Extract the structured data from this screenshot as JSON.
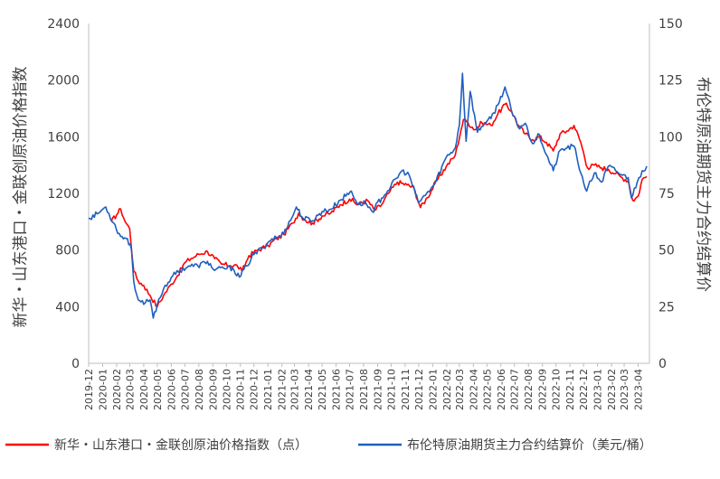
{
  "chart_data": {
    "type": "line",
    "x_start": "2019-12",
    "x_end": "2023-04",
    "x_ticks": [
      "2019-12",
      "2020-01",
      "2020-02",
      "2020-03",
      "2020-04",
      "2020-05",
      "2020-06",
      "2020-07",
      "2020-08",
      "2020-09",
      "2020-10",
      "2020-11",
      "2020-12",
      "2021-01",
      "2021-02",
      "2021-03",
      "2021-04",
      "2021-05",
      "2021-06",
      "2021-07",
      "2021-08",
      "2021-09",
      "2021-10",
      "2021-11",
      "2021-12",
      "2022-01",
      "2022-02",
      "2022-03",
      "2022-04",
      "2022-05",
      "2022-06",
      "2022-07",
      "2022-08",
      "2022-09",
      "2022-10",
      "2022-11",
      "2022-12",
      "2023-01",
      "2023-02",
      "2023-03",
      "2023-04"
    ],
    "y_left": {
      "label": "新华・山东港口・金联创原油价格指数",
      "ticks": [
        "0",
        "400",
        "800",
        "1200",
        "1600",
        "2000",
        "2400"
      ],
      "lim": [
        0,
        2400
      ]
    },
    "y_right": {
      "label": "布伦特原油期货主力合约结算价",
      "ticks": [
        "0",
        "25",
        "50",
        "75",
        "100",
        "125",
        "150"
      ],
      "lim": [
        0,
        150
      ]
    },
    "grid": false,
    "legend_position": "bottom",
    "series": [
      {
        "name": "新华・山东港口・金联创原油价格指数（点）",
        "axis": "left",
        "color": "#ff0000",
        "points": [
          [
            "2020-01-20",
            1000
          ],
          [
            "2020-02-01",
            1050
          ],
          [
            "2020-02-10",
            1090
          ],
          [
            "2020-02-20",
            1000
          ],
          [
            "2020-03-01",
            950
          ],
          [
            "2020-03-10",
            650
          ],
          [
            "2020-03-20",
            580
          ],
          [
            "2020-04-01",
            550
          ],
          [
            "2020-04-15",
            480
          ],
          [
            "2020-05-01",
            400
          ],
          [
            "2020-05-15",
            480
          ],
          [
            "2020-06-01",
            560
          ],
          [
            "2020-06-15",
            620
          ],
          [
            "2020-07-01",
            710
          ],
          [
            "2020-07-15",
            740
          ],
          [
            "2020-08-01",
            770
          ],
          [
            "2020-08-20",
            790
          ],
          [
            "2020-09-05",
            740
          ],
          [
            "2020-09-20",
            700
          ],
          [
            "2020-10-10",
            690
          ],
          [
            "2020-10-25",
            690
          ],
          [
            "2020-11-05",
            650
          ],
          [
            "2020-11-20",
            760
          ],
          [
            "2020-12-10",
            800
          ],
          [
            "2021-01-01",
            830
          ],
          [
            "2021-01-20",
            880
          ],
          [
            "2021-02-05",
            910
          ],
          [
            "2021-02-25",
            990
          ],
          [
            "2021-03-10",
            1060
          ],
          [
            "2021-03-25",
            1010
          ],
          [
            "2021-04-10",
            990
          ],
          [
            "2021-05-01",
            1040
          ],
          [
            "2021-05-20",
            1060
          ],
          [
            "2021-06-10",
            1120
          ],
          [
            "2021-07-01",
            1160
          ],
          [
            "2021-07-20",
            1120
          ],
          [
            "2021-08-10",
            1150
          ],
          [
            "2021-08-25",
            1080
          ],
          [
            "2021-09-10",
            1120
          ],
          [
            "2021-09-25",
            1200
          ],
          [
            "2021-10-15",
            1280
          ],
          [
            "2021-11-05",
            1260
          ],
          [
            "2021-11-20",
            1240
          ],
          [
            "2021-12-05",
            1100
          ],
          [
            "2021-12-20",
            1170
          ],
          [
            "2022-01-10",
            1290
          ],
          [
            "2022-01-31",
            1390
          ],
          [
            "2022-02-20",
            1470
          ],
          [
            "2022-03-05",
            1650
          ],
          [
            "2022-03-10",
            1720
          ],
          [
            "2022-03-20",
            1700
          ],
          [
            "2022-04-05",
            1650
          ],
          [
            "2022-04-20",
            1700
          ],
          [
            "2022-05-10",
            1680
          ],
          [
            "2022-05-25",
            1760
          ],
          [
            "2022-06-10",
            1830
          ],
          [
            "2022-06-25",
            1780
          ],
          [
            "2022-07-10",
            1680
          ],
          [
            "2022-07-25",
            1620
          ],
          [
            "2022-08-10",
            1580
          ],
          [
            "2022-08-25",
            1600
          ],
          [
            "2022-09-10",
            1560
          ],
          [
            "2022-09-25",
            1500
          ],
          [
            "2022-10-10",
            1620
          ],
          [
            "2022-10-25",
            1640
          ],
          [
            "2022-11-10",
            1680
          ],
          [
            "2022-11-25",
            1560
          ],
          [
            "2022-12-10",
            1380
          ],
          [
            "2022-12-25",
            1400
          ],
          [
            "2023-01-10",
            1380
          ],
          [
            "2023-01-25",
            1370
          ],
          [
            "2023-02-10",
            1340
          ],
          [
            "2023-02-25",
            1310
          ],
          [
            "2023-03-10",
            1290
          ],
          [
            "2023-03-20",
            1150
          ],
          [
            "2023-04-01",
            1180
          ],
          [
            "2023-04-10",
            1300
          ],
          [
            "2023-04-20",
            1320
          ]
        ]
      },
      {
        "name": "布伦特原油期货主力合约结算价（美元/桶）",
        "axis": "right",
        "color": "#1f5fbf",
        "points": [
          [
            "2019-12-01",
            64
          ],
          [
            "2019-12-20",
            66
          ],
          [
            "2020-01-08",
            69
          ],
          [
            "2020-01-25",
            62
          ],
          [
            "2020-02-10",
            56
          ],
          [
            "2020-02-25",
            55
          ],
          [
            "2020-03-05",
            50
          ],
          [
            "2020-03-10",
            36
          ],
          [
            "2020-03-20",
            28
          ],
          [
            "2020-04-01",
            26
          ],
          [
            "2020-04-15",
            28
          ],
          [
            "2020-04-22",
            20
          ],
          [
            "2020-05-01",
            26
          ],
          [
            "2020-05-15",
            33
          ],
          [
            "2020-06-01",
            38
          ],
          [
            "2020-06-20",
            41
          ],
          [
            "2020-07-10",
            43
          ],
          [
            "2020-07-30",
            43
          ],
          [
            "2020-08-20",
            45
          ],
          [
            "2020-09-05",
            41
          ],
          [
            "2020-09-25",
            42
          ],
          [
            "2020-10-15",
            42
          ],
          [
            "2020-10-30",
            38
          ],
          [
            "2020-11-15",
            43
          ],
          [
            "2020-12-01",
            48
          ],
          [
            "2020-12-20",
            51
          ],
          [
            "2021-01-10",
            55
          ],
          [
            "2021-01-30",
            56
          ],
          [
            "2021-02-20",
            63
          ],
          [
            "2021-03-05",
            69
          ],
          [
            "2021-03-20",
            64
          ],
          [
            "2021-04-10",
            63
          ],
          [
            "2021-05-01",
            67
          ],
          [
            "2021-05-20",
            68
          ],
          [
            "2021-06-10",
            72
          ],
          [
            "2021-07-05",
            76
          ],
          [
            "2021-07-20",
            70
          ],
          [
            "2021-08-05",
            71
          ],
          [
            "2021-08-20",
            67
          ],
          [
            "2021-09-10",
            73
          ],
          [
            "2021-09-30",
            78
          ],
          [
            "2021-10-25",
            85
          ],
          [
            "2021-11-10",
            83
          ],
          [
            "2021-11-30",
            71
          ],
          [
            "2021-12-15",
            74
          ],
          [
            "2022-01-05",
            79
          ],
          [
            "2022-01-31",
            91
          ],
          [
            "2022-02-20",
            95
          ],
          [
            "2022-03-01",
            105
          ],
          [
            "2022-03-08",
            128
          ],
          [
            "2022-03-16",
            98
          ],
          [
            "2022-03-25",
            120
          ],
          [
            "2022-04-10",
            102
          ],
          [
            "2022-04-25",
            106
          ],
          [
            "2022-05-10",
            108
          ],
          [
            "2022-05-25",
            114
          ],
          [
            "2022-06-10",
            122
          ],
          [
            "2022-06-25",
            111
          ],
          [
            "2022-07-10",
            104
          ],
          [
            "2022-07-25",
            106
          ],
          [
            "2022-08-10",
            97
          ],
          [
            "2022-08-25",
            101
          ],
          [
            "2022-09-10",
            92
          ],
          [
            "2022-09-25",
            85
          ],
          [
            "2022-10-10",
            94
          ],
          [
            "2022-10-25",
            95
          ],
          [
            "2022-11-10",
            96
          ],
          [
            "2022-11-25",
            84
          ],
          [
            "2022-12-08",
            76
          ],
          [
            "2022-12-25",
            84
          ],
          [
            "2023-01-10",
            80
          ],
          [
            "2023-01-25",
            87
          ],
          [
            "2023-02-10",
            85
          ],
          [
            "2023-02-25",
            83
          ],
          [
            "2023-03-10",
            82
          ],
          [
            "2023-03-17",
            73
          ],
          [
            "2023-03-30",
            80
          ],
          [
            "2023-04-10",
            85
          ],
          [
            "2023-04-20",
            87
          ]
        ]
      }
    ]
  }
}
